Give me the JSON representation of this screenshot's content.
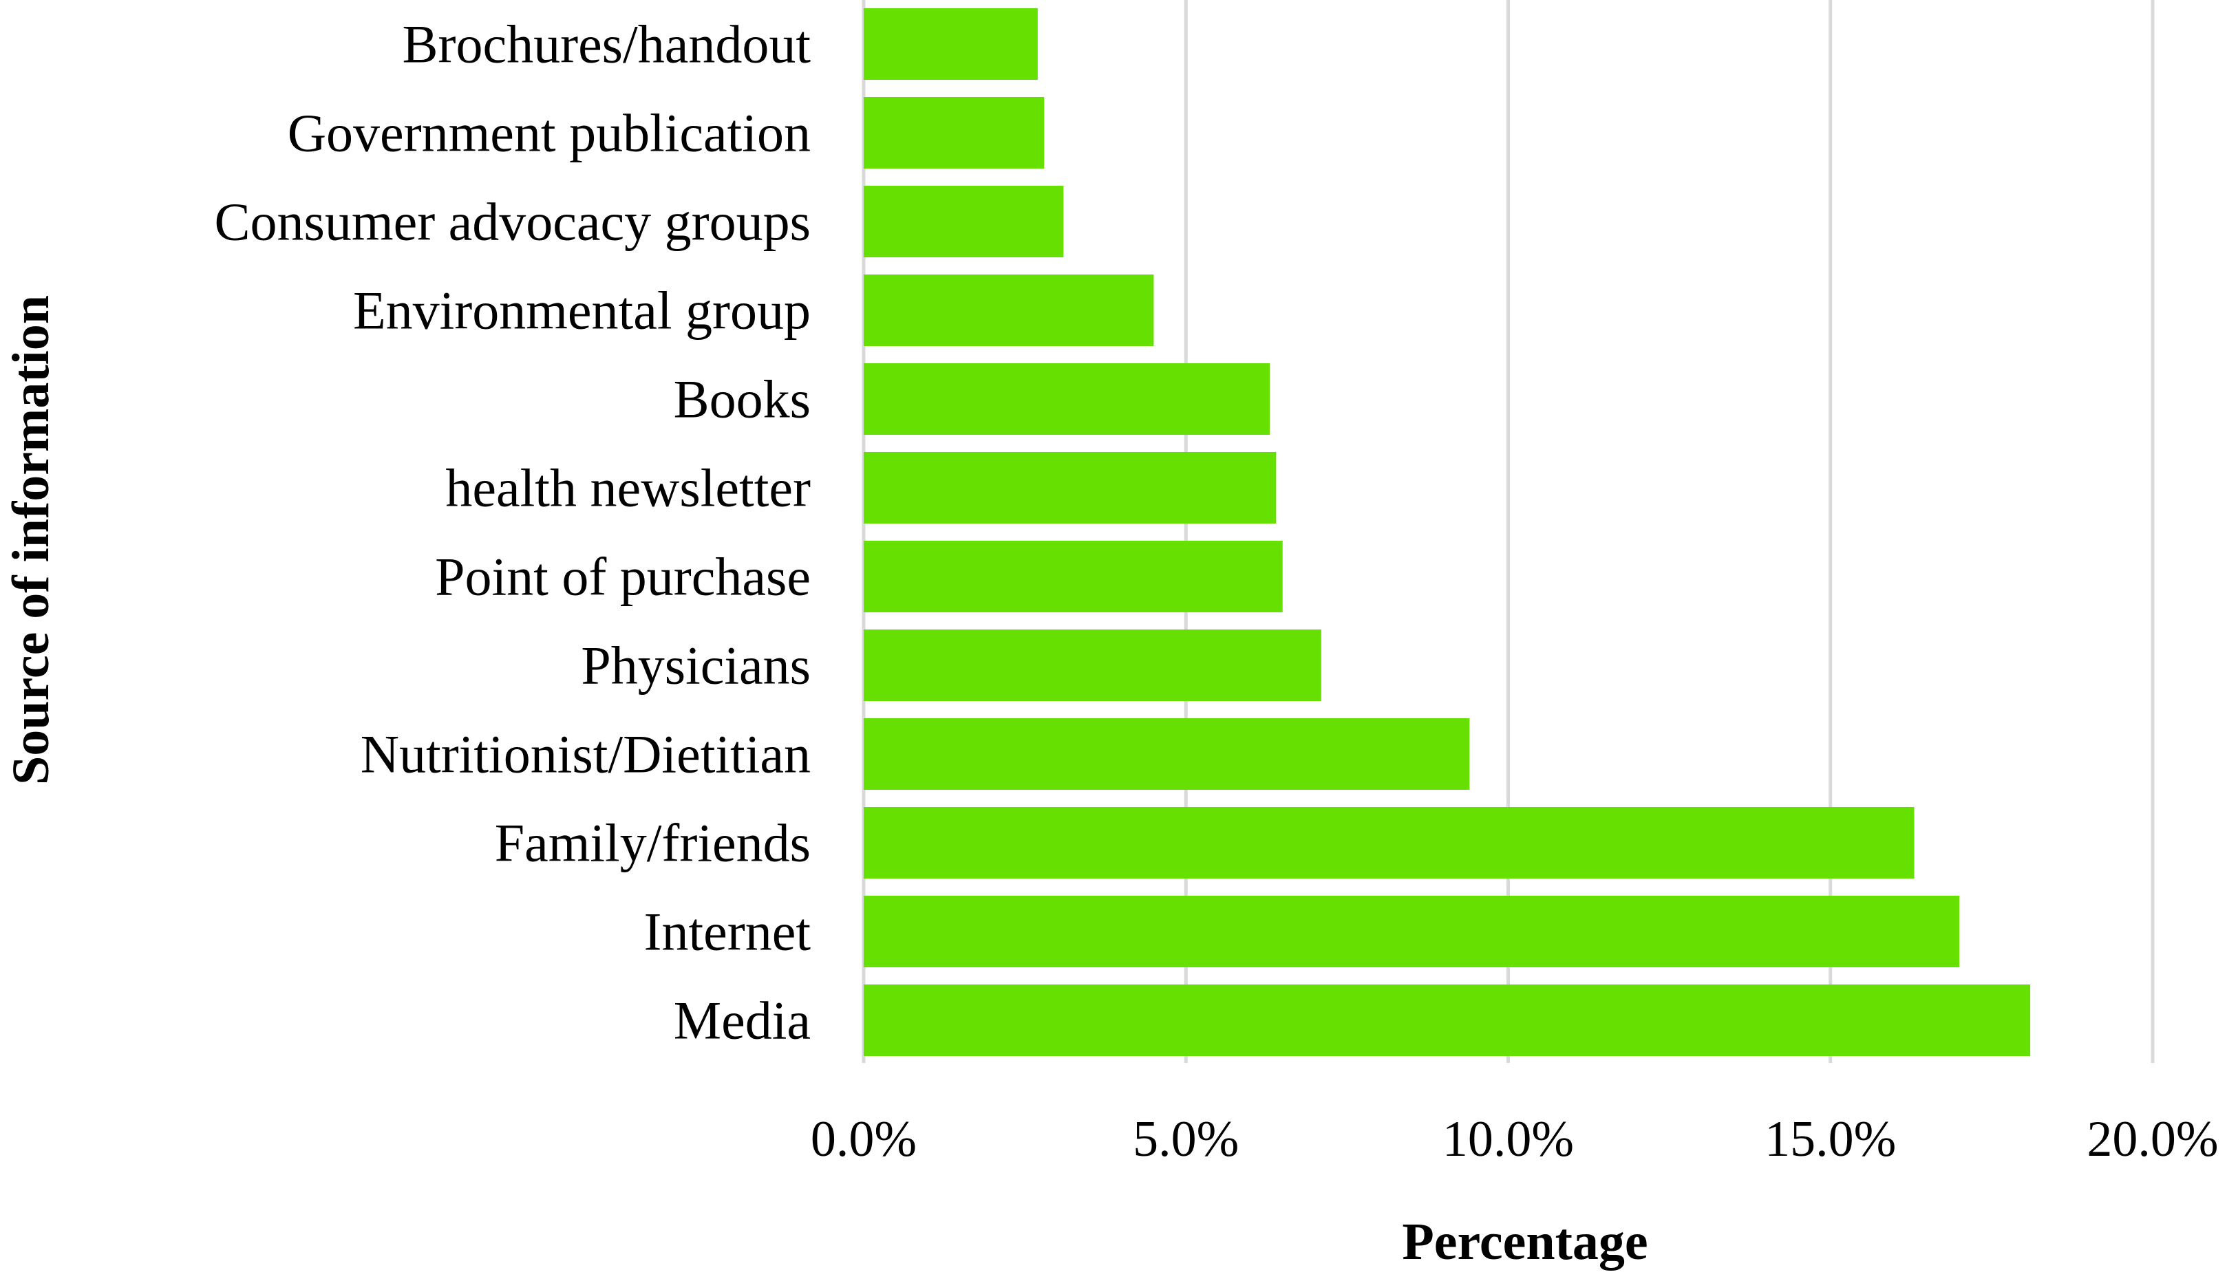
{
  "chart_data": {
    "type": "bar",
    "orientation": "horizontal",
    "title": "",
    "xlabel": "Percentage",
    "ylabel": "Source of information",
    "categories": [
      "Brochures/handout",
      "Government publication",
      "Consumer advocacy groups",
      "Environmental group",
      "Books",
      "health newsletter",
      "Point of purchase",
      "Physicians",
      "Nutritionist/Dietitian",
      "Family/friends",
      "Internet",
      "Media"
    ],
    "values": [
      2.7,
      2.8,
      3.1,
      4.5,
      6.3,
      6.4,
      6.5,
      7.1,
      9.4,
      16.3,
      17.0,
      18.1
    ],
    "xlim": [
      0,
      20
    ],
    "xticks": [
      0,
      5,
      10,
      15,
      20
    ],
    "xtick_labels": [
      "0.0%",
      "5.0%",
      "10.0%",
      "15.0%",
      "20.0%"
    ],
    "grid": "vertical",
    "legend": "none",
    "bar_color": "#66e000",
    "grid_color": "#d9d9d9"
  }
}
